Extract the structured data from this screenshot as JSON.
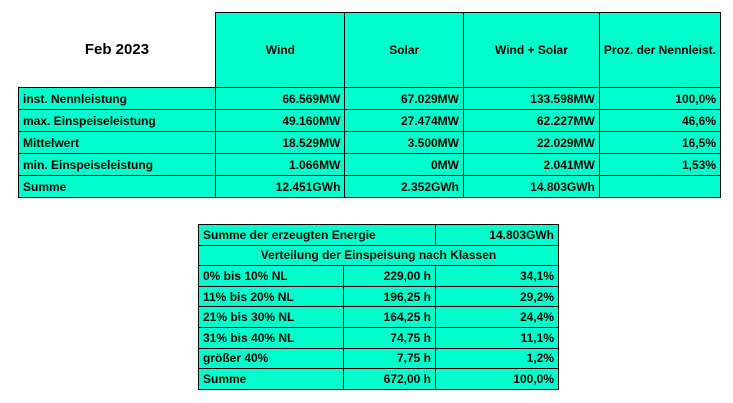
{
  "table1": {
    "title": "Feb 2023",
    "headers": [
      "Wind",
      "Solar",
      "Wind + Solar",
      "Proz. der Nennleist."
    ],
    "rows": [
      [
        "inst. Nennleistung",
        "66.569MW",
        "67.029MW",
        "133.598MW",
        "100,0%"
      ],
      [
        "max. Einspeiseleistung",
        "49.160MW",
        "27.474MW",
        "62.227MW",
        "46,6%"
      ],
      [
        "Mittelwert",
        "18.529MW",
        "3.500MW",
        "22.029MW",
        "16,5%"
      ],
      [
        "min. Einspeiseleistung",
        "1.066MW",
        "0MW",
        "2.041MW",
        "1,53%"
      ],
      [
        "Summe",
        "12.451GWh",
        "2.352GWh",
        "14.803GWh"
      ]
    ]
  },
  "table2": {
    "total_label": "Summe der erzeugten Energie",
    "total_value": "14.803GWh",
    "subtitle": "Verteilung der Einspeisung nach Klassen",
    "rows": [
      [
        "0% bis 10% NL",
        "229,00 h",
        "34,1%"
      ],
      [
        "11% bis 20% NL",
        "196,25 h",
        "29,2%"
      ],
      [
        "21% bis 30% NL",
        "164,25 h",
        "24,4%"
      ],
      [
        "31% bis 40% NL",
        "74,75 h",
        "11,1%"
      ],
      [
        "größer 40%",
        "7,75 h",
        "1,2%"
      ],
      [
        "Summe",
        "672,00 h",
        "100,0%"
      ]
    ]
  }
}
